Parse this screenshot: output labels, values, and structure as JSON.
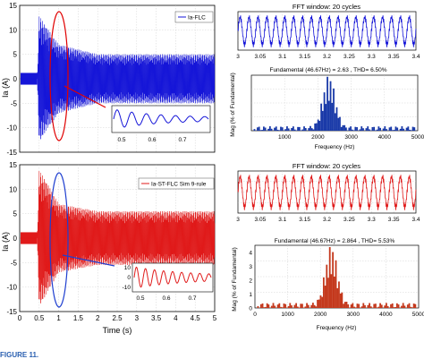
{
  "colors": {
    "blue": "#1515d8",
    "red": "#e01a1a",
    "ellipse_red": "#e00000",
    "ellipse_blue": "#1f3fd0",
    "bar_blue": "#1a3aa8",
    "bar_red": "#c4381c",
    "grid": "#c8c8c8"
  },
  "caption_fragment": "FIGURE 11.",
  "chart_data": [
    {
      "id": "ia-flc",
      "type": "line",
      "legend": "Ia-FLC",
      "legend_position": "top-right",
      "ylabel": "Ia (A)",
      "ylim": [
        -15,
        15
      ],
      "yticks": [
        "15",
        "10",
        "5",
        "0",
        "-5",
        "-10",
        "-15"
      ],
      "xlim": [
        0,
        5
      ],
      "grid": true,
      "series": [
        {
          "name": "Ia-FLC",
          "envelope": [
            [
              0,
              0
            ],
            [
              0.45,
              0
            ],
            [
              0.5,
              13
            ],
            [
              0.65,
              11
            ],
            [
              1.0,
              7
            ],
            [
              2.0,
              5
            ],
            [
              5.0,
              5
            ]
          ]
        }
      ],
      "inset": {
        "xticks": [
          "0.5",
          "0.6",
          "0.7"
        ]
      }
    },
    {
      "id": "ia-st-flc",
      "type": "line",
      "legend": "Ia-ST-FLC Sim 9-rule",
      "legend_position": "top-right",
      "ylabel": "Ia (A)",
      "ylim": [
        -15,
        15
      ],
      "yticks": [
        "15",
        "10",
        "5",
        "0",
        "-5",
        "-10",
        "-15"
      ],
      "xlim": [
        0,
        5
      ],
      "xlabel": "Time (s)",
      "xticks": [
        "0",
        "0.5",
        "1",
        "1.5",
        "2",
        "2.5",
        "3",
        "3.5",
        "4",
        "4.5",
        "5"
      ],
      "grid": true,
      "series": [
        {
          "name": "Ia-ST-FLC Sim 9-rule",
          "envelope": [
            [
              0,
              0
            ],
            [
              0.45,
              0
            ],
            [
              0.5,
              14
            ],
            [
              0.65,
              12
            ],
            [
              1.0,
              7
            ],
            [
              2.0,
              5.5
            ],
            [
              5.0,
              5.5
            ]
          ]
        }
      ],
      "inset": {
        "yticks": [
          "10",
          "0",
          "-10"
        ],
        "xticks": [
          "0.5",
          "0.6",
          "0.7"
        ]
      }
    },
    {
      "id": "fft-window-top",
      "type": "line",
      "title": "FFT window: 20 cycles",
      "xlim": [
        3,
        3.4
      ],
      "xticks": [
        "3",
        "3.05",
        "3.1",
        "3.15",
        "3.2",
        "3.25",
        "3.3",
        "3.35",
        "3.4"
      ],
      "cycles": 20,
      "grid": true
    },
    {
      "id": "spectrum-flc",
      "type": "bar",
      "title": "Fundamental (46.67Hz) = 2.63 , THD= 6.50%",
      "xlabel": "Frequency (Hz)",
      "xlim": [
        0,
        5000
      ],
      "xticks": [
        "1000",
        "2000",
        "3000",
        "4000",
        "5000"
      ],
      "ylabel": "Mag (% of Fundamental)",
      "grid": true,
      "peak_hz": 2333,
      "thd_percent": 6.5,
      "fundamental_a": 2.63
    },
    {
      "id": "fft-window-bottom",
      "type": "line",
      "title": "FFT window: 20  cycles",
      "xlim": [
        3,
        3.4
      ],
      "xticks": [
        "3",
        "3.05",
        "3.1",
        "3.15",
        "3.2",
        "3.25",
        "3.3",
        "3.35",
        "3.4"
      ],
      "cycles": 20,
      "grid": true
    },
    {
      "id": "spectrum-st-flc",
      "type": "bar",
      "title": "Fundamental (46.67Hz) = 2.864 , THD= 5.53%",
      "xlabel": "Frequency (Hz)",
      "xlim": [
        0,
        5000
      ],
      "xticks": [
        "0",
        "1000",
        "2000",
        "3000",
        "4000",
        "5000"
      ],
      "yticks": [
        "0",
        "1",
        "2",
        "3",
        "4"
      ],
      "ylim": [
        0,
        4.5
      ],
      "ylabel": "Mag (% of Fundamental)",
      "grid": true,
      "peak_hz": 2333,
      "thd_percent": 5.53,
      "fundamental_a": 2.864
    }
  ]
}
